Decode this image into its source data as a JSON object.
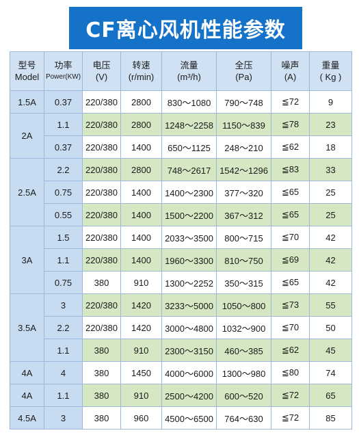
{
  "title": "CF离心风机性能参数",
  "headers": [
    {
      "line1": "型号",
      "line2": "Model"
    },
    {
      "line1": "功率",
      "line2": "Power(KW)"
    },
    {
      "line1": "电压",
      "line2": "(V)"
    },
    {
      "line1": "转速",
      "line2": "(r/min)"
    },
    {
      "line1": "流量",
      "line2": "(m³/h)"
    },
    {
      "line1": "全压",
      "line2": "(Pa)"
    },
    {
      "line1": "噪声",
      "line2": "(A)"
    },
    {
      "line1": "重量",
      "line2": "( Kg )"
    }
  ],
  "rows": [
    {
      "model": "1.5A",
      "power": "0.37",
      "voltage": "220/380",
      "speed": "2800",
      "flow": "830～1080",
      "pressure": "790～748",
      "noise": "≦72",
      "weight": "9",
      "shade": "w"
    },
    {
      "model": "2A",
      "power": "1.1",
      "voltage": "220/380",
      "speed": "2800",
      "flow": "1248～2258",
      "pressure": "1150～839",
      "noise": "≦78",
      "weight": "23",
      "shade": "g"
    },
    {
      "model": "",
      "power": "0.37",
      "voltage": "220/380",
      "speed": "1400",
      "flow": "650～1125",
      "pressure": "248～210",
      "noise": "≦62",
      "weight": "18",
      "shade": "w"
    },
    {
      "model": "2.5A",
      "power": "2.2",
      "voltage": "220/380",
      "speed": "2800",
      "flow": "748～2617",
      "pressure": "1542～1296",
      "noise": "≦83",
      "weight": "33",
      "shade": "g"
    },
    {
      "model": "",
      "power": "0.75",
      "voltage": "220/380",
      "speed": "1400",
      "flow": "1400～2300",
      "pressure": "377～320",
      "noise": "≦65",
      "weight": "25",
      "shade": "w"
    },
    {
      "model": "",
      "power": "0.55",
      "voltage": "220/380",
      "speed": "1400",
      "flow": "1500～2200",
      "pressure": "367～312",
      "noise": "≦65",
      "weight": "25",
      "shade": "g"
    },
    {
      "model": "3A",
      "power": "1.5",
      "voltage": "220/380",
      "speed": "1400",
      "flow": "2033～3500",
      "pressure": "800～715",
      "noise": "≦70",
      "weight": "42",
      "shade": "w"
    },
    {
      "model": "",
      "power": "1.1",
      "voltage": "220/380",
      "speed": "1400",
      "flow": "1960～3300",
      "pressure": "810～750",
      "noise": "≦69",
      "weight": "42",
      "shade": "g"
    },
    {
      "model": "",
      "power": "0.75",
      "voltage": "380",
      "speed": "910",
      "flow": "1300～2252",
      "pressure": "350～315",
      "noise": "≦65",
      "weight": "42",
      "shade": "w"
    },
    {
      "model": "3.5A",
      "power": "3",
      "voltage": "220/380",
      "speed": "1420",
      "flow": "3233～5000",
      "pressure": "1050～800",
      "noise": "≦73",
      "weight": "55",
      "shade": "g"
    },
    {
      "model": "",
      "power": "2.2",
      "voltage": "220/380",
      "speed": "1420",
      "flow": "3000～4800",
      "pressure": "1032～900",
      "noise": "≦70",
      "weight": "50",
      "shade": "w"
    },
    {
      "model": "",
      "power": "1.1",
      "voltage": "380",
      "speed": "910",
      "flow": "2300～3150",
      "pressure": "460～385",
      "noise": "≦62",
      "weight": "45",
      "shade": "g"
    },
    {
      "model": "4A",
      "power": "4",
      "voltage": "380",
      "speed": "1450",
      "flow": "4000～6000",
      "pressure": "1300～980",
      "noise": "≦80",
      "weight": "74",
      "shade": "w"
    },
    {
      "model": "4A",
      "power": "1.1",
      "voltage": "380",
      "speed": "910",
      "flow": "2500～4200",
      "pressure": "600～520",
      "noise": "≦72",
      "weight": "65",
      "shade": "g"
    },
    {
      "model": "4.5A",
      "power": "3",
      "voltage": "380",
      "speed": "960",
      "flow": "4500～6500",
      "pressure": "764～630",
      "noise": "≦72",
      "weight": "85",
      "shade": "w"
    }
  ]
}
